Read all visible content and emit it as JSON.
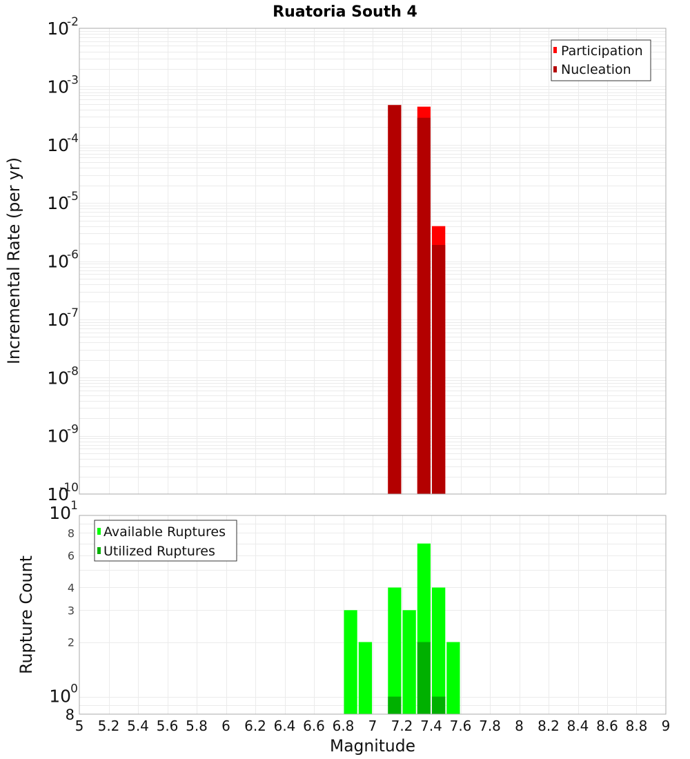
{
  "title": "Ruatoria South 4",
  "chart_data": [
    {
      "type": "bar",
      "title": "Ruatoria South 4",
      "xlabel": "Magnitude",
      "ylabel": "Incremental Rate (per yr)",
      "yscale": "log",
      "xlim": [
        5,
        9
      ],
      "ylim": [
        1e-10,
        0.01
      ],
      "grid": true,
      "legend_position": "top-right",
      "bin_width": 0.1,
      "x": [
        7.15,
        7.35,
        7.45
      ],
      "series": [
        {
          "name": "Participation",
          "color": "#ff0000",
          "values": [
            0.00048,
            0.00045,
            4e-06
          ]
        },
        {
          "name": "Nucleation",
          "color": "#b30000",
          "values": [
            0.00048,
            0.00029,
            1.9e-06
          ]
        }
      ],
      "yticks": [
        {
          "value": 0.01,
          "base": "10",
          "exp": "-2"
        },
        {
          "value": 0.001,
          "base": "10",
          "exp": "-3"
        },
        {
          "value": 0.0001,
          "base": "10",
          "exp": "-4"
        },
        {
          "value": 1e-05,
          "base": "10",
          "exp": "-5"
        },
        {
          "value": 1e-06,
          "base": "10",
          "exp": "-6"
        },
        {
          "value": 1e-07,
          "base": "10",
          "exp": "-7"
        },
        {
          "value": 1e-08,
          "base": "10",
          "exp": "-8"
        },
        {
          "value": 1e-09,
          "base": "10",
          "exp": "-9"
        },
        {
          "value": 1e-10,
          "base": "10",
          "exp": "-10"
        }
      ]
    },
    {
      "type": "bar",
      "xlabel": "Magnitude",
      "ylabel": "Rupture Count",
      "yscale": "log",
      "xlim": [
        5,
        9
      ],
      "ylim": [
        0.8,
        10
      ],
      "grid": true,
      "legend_position": "top-left",
      "bin_width": 0.1,
      "x": [
        6.85,
        6.95,
        7.15,
        7.25,
        7.35,
        7.45,
        7.55
      ],
      "series": [
        {
          "name": "Available Ruptures",
          "color": "#00ff00",
          "values": [
            3,
            2,
            4,
            3,
            7,
            4,
            2
          ]
        },
        {
          "name": "Utilized Ruptures",
          "color": "#00b000",
          "values": [
            0,
            0,
            1,
            0,
            2,
            1,
            0
          ]
        }
      ],
      "yticks": [
        {
          "value": 10,
          "base": "10",
          "exp": "1",
          "kind": "major"
        },
        {
          "value": 8,
          "label": "8",
          "kind": "minor"
        },
        {
          "value": 6,
          "label": "6",
          "kind": "minor"
        },
        {
          "value": 4,
          "label": "4",
          "kind": "minor"
        },
        {
          "value": 3,
          "label": "3",
          "kind": "minor"
        },
        {
          "value": 2,
          "label": "2",
          "kind": "minor"
        },
        {
          "value": 1,
          "base": "10",
          "exp": "0",
          "kind": "major"
        },
        {
          "value": 0.8,
          "label": "8",
          "kind": "edge"
        }
      ],
      "xticks": [
        5,
        5.2,
        5.4,
        5.6,
        5.8,
        6,
        6.2,
        6.4,
        6.6,
        6.8,
        7,
        7.2,
        7.4,
        7.6,
        7.8,
        8,
        8.2,
        8.4,
        8.6,
        8.8,
        9
      ],
      "xtick_labels": [
        "5",
        "5.2",
        "5.4",
        "5.6",
        "5.8",
        "6",
        "6.2",
        "6.4",
        "6.6",
        "6.8",
        "7",
        "7.2",
        "7.4",
        "7.6",
        "7.8",
        "8",
        "8.2",
        "8.4",
        "8.6",
        "8.8",
        "9"
      ]
    }
  ]
}
